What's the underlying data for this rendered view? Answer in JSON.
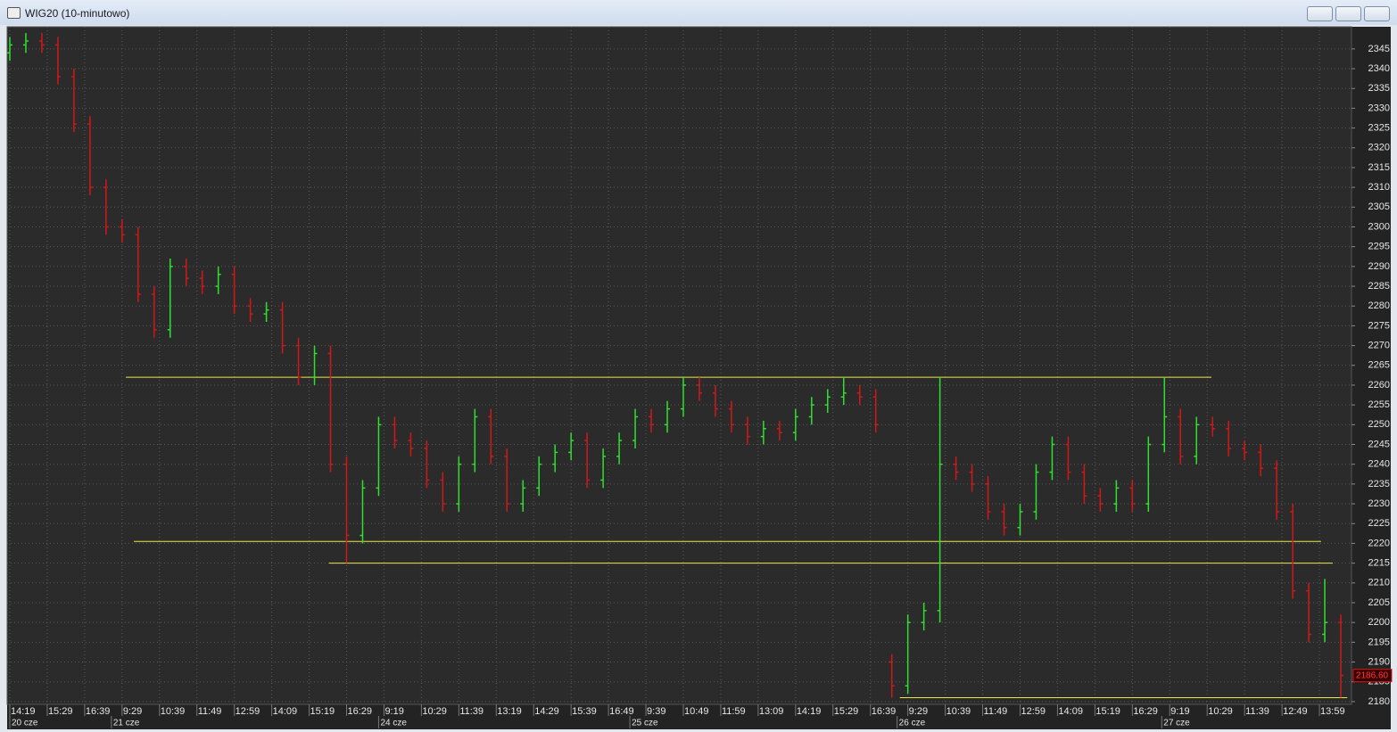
{
  "chart_data": {
    "type": "ohlc",
    "title": "WIG20 (10-minutowo)",
    "up_color": "#2ee02e",
    "down_color": "#d01818",
    "x": [
      0,
      3,
      6,
      9,
      12,
      15,
      18,
      21,
      24,
      27,
      30,
      33,
      36,
      39,
      42,
      45,
      48,
      51,
      54,
      57,
      60,
      63,
      66,
      69,
      72,
      75,
      78,
      81,
      84,
      87,
      90,
      93,
      96,
      99,
      102,
      105,
      108,
      111,
      114,
      117,
      120,
      123,
      126,
      129,
      132,
      135,
      138,
      141,
      144,
      147,
      150,
      153,
      156,
      159,
      162,
      165,
      168,
      171,
      174,
      177,
      180,
      183,
      186,
      189,
      192,
      195,
      198,
      201,
      204,
      207,
      210,
      213,
      216,
      219,
      222,
      225,
      228,
      231,
      234,
      237,
      240,
      243,
      246,
      249
    ],
    "open": [
      2344,
      2346,
      2347,
      2346,
      2338,
      2326,
      2310,
      2300,
      2298,
      2283,
      2274,
      2290,
      2287,
      2285,
      2288,
      2280,
      2278,
      2279,
      2270,
      2262,
      2268,
      2240,
      2222,
      2234,
      2250,
      2246,
      2244,
      2236,
      2230,
      2240,
      2252,
      2242,
      2230,
      2234,
      2240,
      2243,
      2246,
      2236,
      2242,
      2246,
      2252,
      2250,
      2254,
      2260,
      2258,
      2254,
      2250,
      2247,
      2249,
      2248,
      2252,
      2255,
      2257,
      2258,
      2257,
      2190,
      2184,
      2200,
      2203,
      2240,
      2238,
      2235,
      2228,
      2224,
      2228,
      2238,
      2245,
      2238,
      2232,
      2230,
      2234,
      2230,
      2245,
      2252,
      2242,
      2250,
      2249,
      2244,
      2243,
      2239,
      2228,
      2208,
      2197,
      2200
    ],
    "high": [
      2348,
      2349,
      2349,
      2348,
      2340,
      2328,
      2312,
      2302,
      2300,
      2285,
      2292,
      2292,
      2289,
      2290,
      2290,
      2282,
      2281,
      2281,
      2272,
      2270,
      2270,
      2242,
      2236,
      2252,
      2252,
      2248,
      2246,
      2238,
      2242,
      2254,
      2254,
      2244,
      2236,
      2242,
      2245,
      2248,
      2248,
      2244,
      2248,
      2254,
      2254,
      2256,
      2262,
      2262,
      2260,
      2256,
      2252,
      2251,
      2251,
      2254,
      2257,
      2259,
      2262,
      2260,
      2259,
      2192,
      2202,
      2205,
      2262,
      2242,
      2240,
      2237,
      2230,
      2230,
      2240,
      2247,
      2247,
      2240,
      2234,
      2236,
      2236,
      2247,
      2262,
      2254,
      2252,
      2252,
      2251,
      2246,
      2245,
      2241,
      2230,
      2210,
      2211,
      2202
    ],
    "low": [
      2342,
      2344,
      2344,
      2336,
      2324,
      2308,
      2298,
      2296,
      2281,
      2272,
      2272,
      2285,
      2283,
      2283,
      2278,
      2276,
      2276,
      2268,
      2260,
      2260,
      2238,
      2215,
      2220,
      2232,
      2244,
      2242,
      2234,
      2228,
      2228,
      2238,
      2240,
      2228,
      2228,
      2232,
      2238,
      2241,
      2234,
      2234,
      2240,
      2244,
      2248,
      2248,
      2252,
      2256,
      2252,
      2248,
      2245,
      2245,
      2246,
      2246,
      2250,
      2253,
      2255,
      2255,
      2248,
      2181,
      2182,
      2198,
      2200,
      2236,
      2233,
      2226,
      2222,
      2222,
      2226,
      2236,
      2236,
      2230,
      2228,
      2228,
      2228,
      2228,
      2243,
      2240,
      2240,
      2247,
      2242,
      2241,
      2237,
      2226,
      2206,
      2195,
      2195,
      2181
    ],
    "close": [
      2346,
      2347,
      2346,
      2338,
      2326,
      2310,
      2300,
      2298,
      2283,
      2274,
      2290,
      2287,
      2285,
      2288,
      2280,
      2278,
      2279,
      2270,
      2262,
      2268,
      2240,
      2222,
      2234,
      2250,
      2246,
      2244,
      2236,
      2230,
      2240,
      2252,
      2242,
      2230,
      2234,
      2240,
      2243,
      2246,
      2236,
      2242,
      2246,
      2252,
      2250,
      2254,
      2260,
      2258,
      2254,
      2250,
      2247,
      2249,
      2248,
      2252,
      2255,
      2257,
      2258,
      2257,
      2250,
      2184,
      2200,
      2203,
      2240,
      2238,
      2235,
      2228,
      2224,
      2228,
      2238,
      2245,
      2238,
      2232,
      2230,
      2234,
      2230,
      2245,
      2252,
      2242,
      2250,
      2249,
      2244,
      2243,
      2239,
      2228,
      2208,
      2197,
      2200,
      2186.6
    ],
    "xlim": [
      -0.5,
      251
    ],
    "ylim": [
      2179.3,
      2350.6
    ],
    "yticks": [
      2180,
      2185,
      2190,
      2195,
      2200,
      2205,
      2210,
      2215,
      2220,
      2225,
      2230,
      2235,
      2240,
      2245,
      2250,
      2255,
      2260,
      2265,
      2270,
      2275,
      2280,
      2285,
      2290,
      2295,
      2300,
      2305,
      2310,
      2315,
      2320,
      2325,
      2330,
      2335,
      2340,
      2345
    ],
    "xticks": [
      {
        "value": 0,
        "label": "14:19"
      },
      {
        "value": 7,
        "label": "15:29"
      },
      {
        "value": 14,
        "label": "16:39"
      },
      {
        "value": 21,
        "label": "9:29"
      },
      {
        "value": 28,
        "label": "10:39"
      },
      {
        "value": 35,
        "label": "11:49"
      },
      {
        "value": 42,
        "label": "12:59"
      },
      {
        "value": 49,
        "label": "14:09"
      },
      {
        "value": 56,
        "label": "15:19"
      },
      {
        "value": 63,
        "label": "16:29"
      },
      {
        "value": 70,
        "label": "9:19"
      },
      {
        "value": 77,
        "label": "10:29"
      },
      {
        "value": 84,
        "label": "11:39"
      },
      {
        "value": 91,
        "label": "13:19"
      },
      {
        "value": 98,
        "label": "14:29"
      },
      {
        "value": 105,
        "label": "15:39"
      },
      {
        "value": 112,
        "label": "16:49"
      },
      {
        "value": 119,
        "label": "9:39"
      },
      {
        "value": 126,
        "label": "10:49"
      },
      {
        "value": 133,
        "label": "11:59"
      },
      {
        "value": 140,
        "label": "13:09"
      },
      {
        "value": 147,
        "label": "14:19"
      },
      {
        "value": 154,
        "label": "15:29"
      },
      {
        "value": 161,
        "label": "16:39"
      },
      {
        "value": 168,
        "label": "9:29"
      },
      {
        "value": 175,
        "label": "10:39"
      },
      {
        "value": 182,
        "label": "11:49"
      },
      {
        "value": 189,
        "label": "12:59"
      },
      {
        "value": 196,
        "label": "14:09"
      },
      {
        "value": 203,
        "label": "15:19"
      },
      {
        "value": 210,
        "label": "16:29"
      },
      {
        "value": 217,
        "label": "9:19"
      },
      {
        "value": 224,
        "label": "10:29"
      },
      {
        "value": 231,
        "label": "11:39"
      },
      {
        "value": 238,
        "label": "12:49"
      },
      {
        "value": 245,
        "label": "13:59"
      }
    ],
    "date_ticks": [
      {
        "value": 0,
        "label": "20 cze"
      },
      {
        "value": 19,
        "label": "21 cze"
      },
      {
        "value": 69,
        "label": "24 cze"
      },
      {
        "value": 116,
        "label": "25 cze"
      },
      {
        "value": 166,
        "label": "26 cze"
      },
      {
        "value": 215.5,
        "label": "27 cze"
      }
    ],
    "grid": true,
    "level_color": "#e8e84a",
    "levels": [
      {
        "value": 2262,
        "x_start": 21.7,
        "x_end": 224.8
      },
      {
        "value": 2220.5,
        "x_start": 23.2,
        "x_end": 245.3
      },
      {
        "value": 2215,
        "x_start": 59.7,
        "x_end": 247.5
      },
      {
        "value": 2181,
        "x_start": 166.5,
        "x_end": 250.2
      }
    ],
    "last_price": {
      "value": 2186.6,
      "label": "2186.60"
    }
  }
}
